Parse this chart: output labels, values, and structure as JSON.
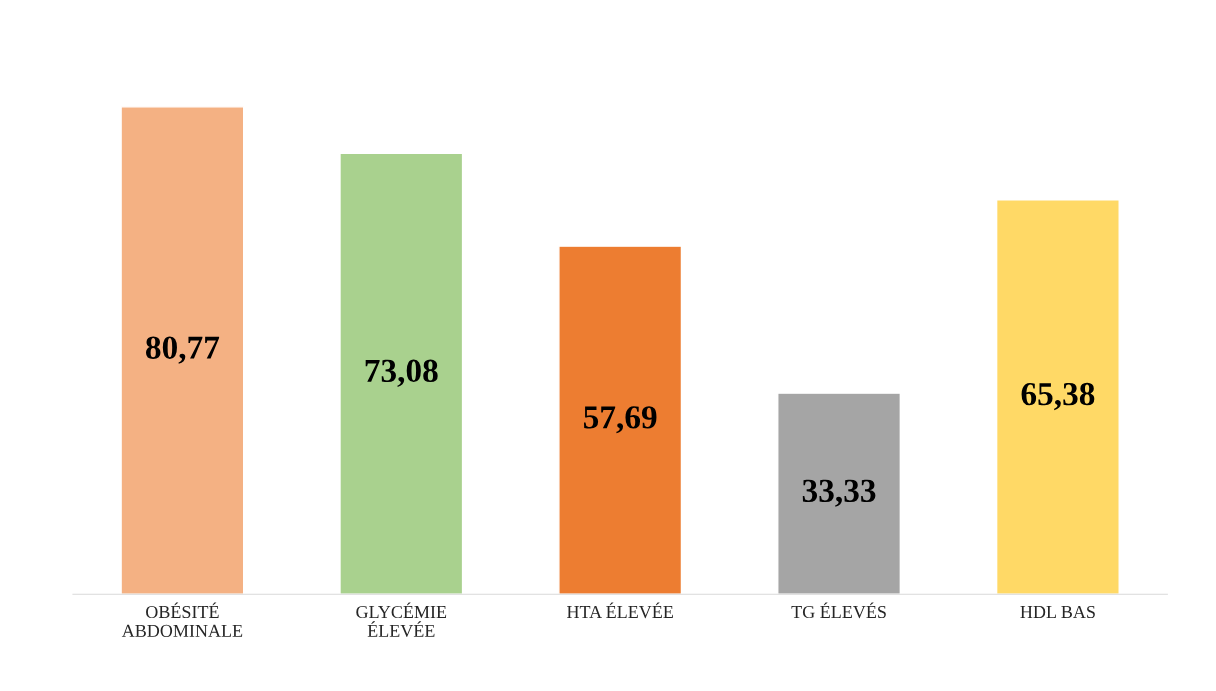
{
  "chart_data": {
    "type": "bar",
    "categories": [
      "OBÉSITÉ\nABDOMINALE",
      "GLYCÉMIE\nÉLEVÉE",
      "HTA ÉLEVÉE",
      "TG ÉLEVÉS",
      "HDL BAS"
    ],
    "values": [
      80.77,
      73.08,
      57.69,
      33.33,
      65.38
    ],
    "colors": [
      "#f4b183",
      "#a9d18e",
      "#ed7d31",
      "#a5a5a5",
      "#ffd966"
    ],
    "value_labels": [
      "80,77",
      "73,08",
      "57,69",
      "33,33",
      "65,38"
    ],
    "grid": false,
    "legend": false
  }
}
